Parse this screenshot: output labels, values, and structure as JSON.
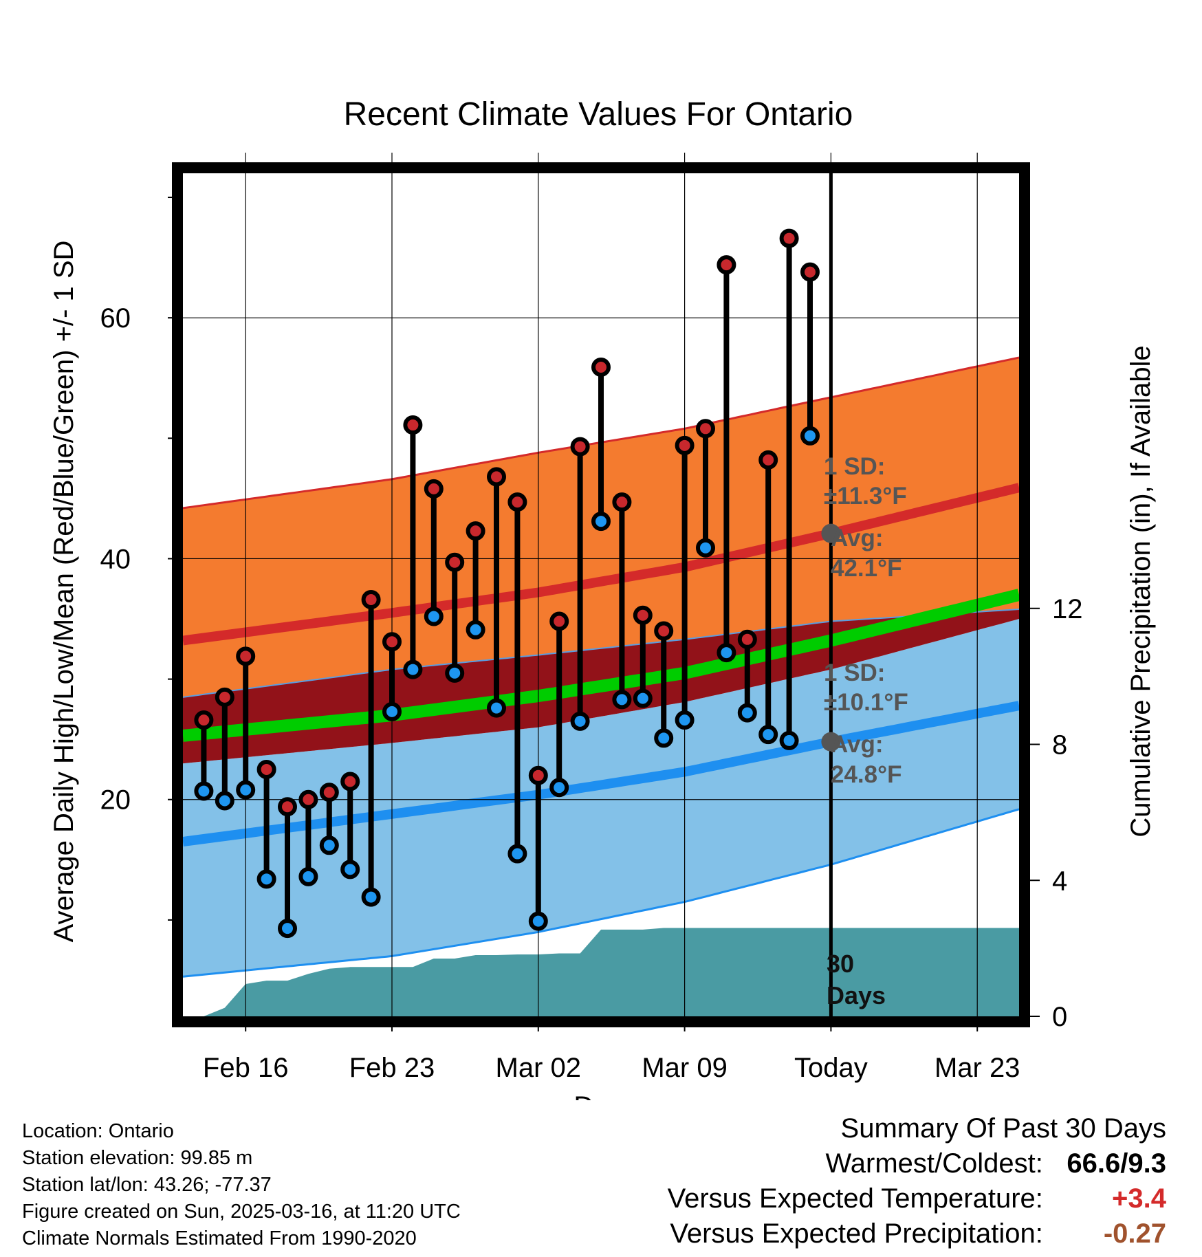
{
  "chart_data": {
    "type": "line",
    "title": "Recent Climate Values For Ontario",
    "xlabel": "Day",
    "ylabel": "Average Daily High/Low/Mean (Red/Blue/Green) +/- 1 SD",
    "ylabel_right": "Cumulative Precipitation (in), If Available",
    "x_ticks": [
      "Feb 16",
      "Feb 23",
      "Mar 02",
      "Mar 09",
      "Today",
      "Mar 23"
    ],
    "x_tick_dates": [
      "2025-02-16",
      "2025-02-23",
      "2025-03-02",
      "2025-03-09",
      "2025-03-16",
      "2025-03-23"
    ],
    "x_range": [
      "2025-02-13",
      "2025-03-25"
    ],
    "y_range": [
      2,
      72
    ],
    "y_ticks": [
      20,
      40,
      60
    ],
    "y_range_right": [
      0,
      24.8
    ],
    "y_ticks_right": [
      0,
      4,
      8,
      12
    ],
    "grid": true,
    "today": "2025-03-16",
    "normals": {
      "dates": [
        "2025-02-13",
        "2025-02-23",
        "2025-03-02",
        "2025-03-09",
        "2025-03-16",
        "2025-03-25"
      ],
      "high_avg": [
        33.2,
        35.5,
        37.2,
        39.3,
        42.1,
        45.9
      ],
      "high_plus_sd": [
        44.2,
        46.6,
        48.8,
        50.8,
        53.4,
        56.7
      ],
      "high_minus_sd": [
        28.5,
        30.8,
        32.0,
        33.3,
        34.8,
        35.8
      ],
      "mean_avg": [
        25.3,
        27.0,
        28.6,
        30.5,
        33.2,
        37.0
      ],
      "low_avg": [
        16.5,
        18.8,
        20.4,
        22.3,
        24.8,
        27.8
      ],
      "low_plus_sd": [
        23.0,
        24.7,
        26.0,
        28.1,
        30.8,
        35.0
      ],
      "low_minus_sd": [
        5.3,
        7.0,
        9.0,
        11.5,
        14.6,
        19.2
      ]
    },
    "series": [
      {
        "name": "High",
        "color": "#c8282d",
        "dates": [
          "2025-02-14",
          "2025-02-15",
          "2025-02-16",
          "2025-02-17",
          "2025-02-18",
          "2025-02-19",
          "2025-02-20",
          "2025-02-21",
          "2025-02-22",
          "2025-02-23",
          "2025-02-24",
          "2025-02-25",
          "2025-02-26",
          "2025-02-27",
          "2025-02-28",
          "2025-03-01",
          "2025-03-02",
          "2025-03-03",
          "2025-03-04",
          "2025-03-05",
          "2025-03-06",
          "2025-03-07",
          "2025-03-08",
          "2025-03-09",
          "2025-03-10",
          "2025-03-11",
          "2025-03-12",
          "2025-03-13",
          "2025-03-14",
          "2025-03-15"
        ],
        "values": [
          26.6,
          28.5,
          31.9,
          22.5,
          19.4,
          20.0,
          20.6,
          21.5,
          36.6,
          33.1,
          51.1,
          45.8,
          39.7,
          42.3,
          46.8,
          44.7,
          22.0,
          34.8,
          49.3,
          55.9,
          44.7,
          35.3,
          34.0,
          49.4,
          50.8,
          64.4,
          33.3,
          48.2,
          66.6,
          63.8
        ]
      },
      {
        "name": "Low",
        "color": "#1e96f0",
        "dates": [
          "2025-02-14",
          "2025-02-15",
          "2025-02-16",
          "2025-02-17",
          "2025-02-18",
          "2025-02-19",
          "2025-02-20",
          "2025-02-21",
          "2025-02-22",
          "2025-02-23",
          "2025-02-24",
          "2025-02-25",
          "2025-02-26",
          "2025-02-27",
          "2025-02-28",
          "2025-03-01",
          "2025-03-02",
          "2025-03-03",
          "2025-03-04",
          "2025-03-05",
          "2025-03-06",
          "2025-03-07",
          "2025-03-08",
          "2025-03-09",
          "2025-03-10",
          "2025-03-11",
          "2025-03-12",
          "2025-03-13",
          "2025-03-14",
          "2025-03-15"
        ],
        "values": [
          20.7,
          19.9,
          20.8,
          13.4,
          9.3,
          13.6,
          16.2,
          14.2,
          11.9,
          27.3,
          30.8,
          35.2,
          30.5,
          34.1,
          27.6,
          15.5,
          9.9,
          21.0,
          26.5,
          43.1,
          28.3,
          28.4,
          25.1,
          26.6,
          40.9,
          32.2,
          27.2,
          25.4,
          24.9,
          50.2
        ]
      },
      {
        "name": "Cumulative Precipitation",
        "color": "#4a9ba3",
        "dates": [
          "2025-02-13",
          "2025-02-14",
          "2025-02-15",
          "2025-02-16",
          "2025-02-17",
          "2025-02-18",
          "2025-02-19",
          "2025-02-20",
          "2025-02-21",
          "2025-02-22",
          "2025-02-23",
          "2025-02-24",
          "2025-02-25",
          "2025-02-26",
          "2025-02-27",
          "2025-02-28",
          "2025-03-01",
          "2025-03-02",
          "2025-03-03",
          "2025-03-04",
          "2025-03-05",
          "2025-03-06",
          "2025-03-07",
          "2025-03-08",
          "2025-03-25"
        ],
        "values": [
          0.0,
          0.0,
          0.25,
          0.95,
          1.05,
          1.05,
          1.25,
          1.4,
          1.45,
          1.45,
          1.45,
          1.45,
          1.7,
          1.7,
          1.8,
          1.8,
          1.82,
          1.82,
          1.85,
          1.85,
          2.55,
          2.55,
          2.55,
          2.6,
          2.6
        ]
      }
    ],
    "annotations": {
      "high_sd_label": "1 SD:",
      "high_sd_value": "±11.3°F",
      "high_avg_label": "Avg:",
      "high_avg_value": "42.1°F",
      "low_sd_label": "1 SD:",
      "low_sd_value": "±10.1°F",
      "low_avg_label": "Avg:",
      "low_avg_value": "24.8°F",
      "days_line1": "30",
      "days_line2": "Days"
    },
    "colors": {
      "high_band": "#f47b2f",
      "high_line": "#d42a2a",
      "low_band": "#83c1e8",
      "low_line": "#1e8ff0",
      "mean_band": "#921219",
      "mean_line": "#00cc00",
      "precip": "#4a9ba3",
      "annotation": "#555555"
    }
  },
  "info": {
    "location": "Location: Ontario",
    "elevation": "Station elevation: 99.85 m",
    "latlon": "Station lat/lon: 43.26; -77.37",
    "created": "Figure created on Sun, 2025-03-16, at 11:20 UTC",
    "normals": "Climate Normals Estimated From 1990-2020"
  },
  "summary": {
    "title": "Summary Of Past 30 Days",
    "warmest_label": "Warmest/Coldest:",
    "warmest_value": "66.6/9.3",
    "temp_label": "Versus Expected Temperature:",
    "temp_value": "+3.4",
    "temp_color": "#d42a2a",
    "precip_label": "Versus Expected Precipitation:",
    "precip_value": "-0.27",
    "precip_color": "#a0522d"
  }
}
